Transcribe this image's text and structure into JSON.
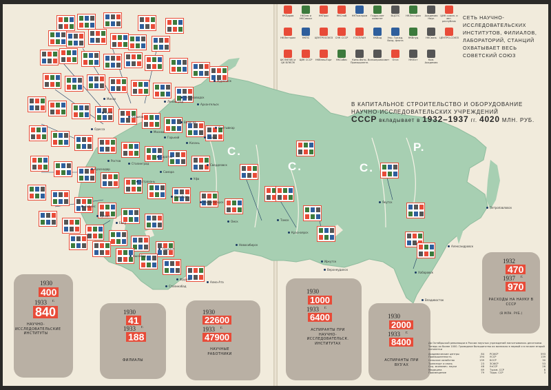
{
  "title": "СЕТЬ НАУЧНО-ИССЛЕДОВАТЕЛЬСКИХ ИНСТИТУТОВ, ФИЛИАЛОВ, ЛАБОРАТОРИЙ, СТАНЦИЙ ОХВАТЫВАЕТ ВЕСЬ СОВЕТСКИЙ СОЮЗ",
  "headline": {
    "line1": "В КАПИТАЛЬНОЕ СТРОИТЕЛЬСТВО И ОБОРУДОВАНИЕ",
    "line2": "НАУЧНО-ИССЛЕДОВАТЕЛЬСКИХ УЧРЕЖДЕНИЙ",
    "line3_pre": "СССР",
    "line3_mid": "вкладывает в",
    "years": "1932–1937",
    "gg": "гг.",
    "amount": "4020",
    "unit": "МЛН. РУБ."
  },
  "map_letters": [
    "С.",
    "С.",
    "С.",
    "Р."
  ],
  "legend": [
    {
      "label": "НКЗдрав",
      "color": "#e84b38"
    },
    {
      "label": "НКЗем и НКСовхоз",
      "color": "#3c7a3c"
    },
    {
      "label": "НКПрос",
      "color": "#e84b38"
    },
    {
      "label": "НКСнаб",
      "color": "#e84b38"
    },
    {
      "label": "НКТяжпром",
      "color": "#2e5e9c"
    },
    {
      "label": "Гидро-мет комитет",
      "color": "#3c7a3c"
    },
    {
      "label": "ВЦСПС",
      "color": "#555555"
    },
    {
      "label": "НКЛеспром",
      "color": "#3c7a3c"
    },
    {
      "label": "Академия Наук",
      "color": "#555555"
    },
    {
      "label": "ЦИК союзн. и авт. республик",
      "color": "#e84b38"
    },
    {
      "label": "НКЛегпром",
      "color": "#e84b38"
    },
    {
      "label": "НКПС",
      "color": "#2e5e9c"
    },
    {
      "label": "ЦЕНТРОСОЮЗ",
      "color": "#e84b38"
    },
    {
      "label": "СНК СССР",
      "color": "#e84b38"
    },
    {
      "label": "ГОСПЛАН",
      "color": "#e84b38"
    },
    {
      "label": "НКВод",
      "color": "#2e5e9c"
    },
    {
      "label": "Упр. Гражд. Возд. флота",
      "color": "#2e5e9c"
    },
    {
      "label": "НКВнуд",
      "color": "#3c7a3c"
    },
    {
      "label": "НКСвязь",
      "color": "#555555"
    },
    {
      "label": "ЦЕНТРО-СОЮЗ",
      "color": "#e84b38"
    },
    {
      "label": "ЦК ВКП(б) и ЦК ВЛКСМ",
      "color": "#e84b38"
    },
    {
      "label": "ЦИК СССР",
      "color": "#e84b38"
    },
    {
      "label": "НКВнешТорг",
      "color": "#e84b38"
    },
    {
      "label": "НКСобес",
      "color": "#3c7a3c"
    },
    {
      "label": "Кино-Фото-Промышленн.",
      "color": "#555555"
    },
    {
      "label": "Всекопромсовет",
      "color": "#555555"
    },
    {
      "label": "Огиз",
      "color": "#e84b38"
    },
    {
      "label": "НКЮст",
      "color": "#555555"
    },
    {
      "label": "Ком. Академия",
      "color": "#555555"
    }
  ],
  "stats": [
    {
      "y1": "1930",
      "v1": "400",
      "y2": "1933",
      "gg": "г.",
      "v2": "840",
      "caption": "НАУЧНО-ИССЛЕДОВАТЕЛЬСКИЕ ИНСТИТУТЫ"
    },
    {
      "y1": "1930",
      "v1": "41",
      "y2": "1933",
      "gg": "г.",
      "v2": "188",
      "caption": "ФИЛИАЛЫ"
    },
    {
      "y1": "1930",
      "v1": "22600",
      "y2": "1933",
      "gg": "г.",
      "v2": "47900",
      "caption": "НАУЧНЫЕ РАБОТНИКИ"
    },
    {
      "y1": "1930",
      "v1": "1000",
      "y2": "1933",
      "gg": "г.",
      "v2": "6400",
      "caption": "АСПИРАНТЫ ПРИ НАУЧНО-ИССЛЕДОВАТЕЛЬСК. ИНСТИТУТАХ"
    },
    {
      "y1": "1930",
      "v1": "2000",
      "y2": "1933",
      "gg": "г.",
      "v2": "8400",
      "caption": "АСПИРАНТЫ ПРИ ВУЗ'ах"
    },
    {
      "y1": "1932",
      "v1": "470",
      "y2": "1937",
      "gg": "г.",
      "v2": "970",
      "caption": "РАСХОДЫ НА НАУКУ В СССР",
      "sub": "(В МЛН. РУБ.)"
    }
  ],
  "footnote": {
    "text": "До Октябрьской революции в России научных учреждений насчитывалось десятками. Теперь их более 1000. Громадное большинство их возникло в первой и в начале второй пятилетки",
    "left": [
      "Академические центры",
      "Промышленность",
      "Сельское хозяйство",
      "Транспорт и связь",
      "Соц. экономич. науки",
      "Медицина",
      "Просвещение"
    ],
    "left_vals": [
      "84",
      "194",
      "139",
      "23",
      "48",
      "69",
      "79"
    ],
    "right": [
      "РСФСР",
      "УССР",
      "БССР",
      "ЗСФСР",
      "УзССР",
      "Туркм. ССР",
      "Тадж. ССР"
    ],
    "right_vals": [
      "593",
      "139",
      "30",
      "53",
      "26",
      "6",
      "3"
    ]
  },
  "cities": [
    "Мурманск",
    "Архангельск",
    "Ленинград",
    "Москва",
    "Петрозаводск",
    "Вологда",
    "Сыктывкар",
    "Киев",
    "Харьков",
    "Одесса",
    "Минск",
    "Горький",
    "Казань",
    "Пермь",
    "Свердловск",
    "Уфа",
    "Самара",
    "Саратов",
    "Сталинград",
    "Ростов",
    "Краснодар",
    "Астрахань",
    "Оренбург",
    "Магнитогорск",
    "Тифлис",
    "Ереван",
    "Баку",
    "Ашхабад",
    "Ташкент",
    "Сталинабад",
    "Фрунзе",
    "Алма-Ата",
    "Омск",
    "Томск",
    "Новосибирск",
    "Красноярск",
    "Иркутск",
    "Верхнеудинск",
    "Якутск",
    "Хабаровск",
    "Владивосток",
    "Петропавловск",
    "Александровск"
  ],
  "colors": {
    "paper": "#f1ebdc",
    "land": "#a7cfb2",
    "accent": "#e84b38",
    "box": "#b9b0a4"
  }
}
